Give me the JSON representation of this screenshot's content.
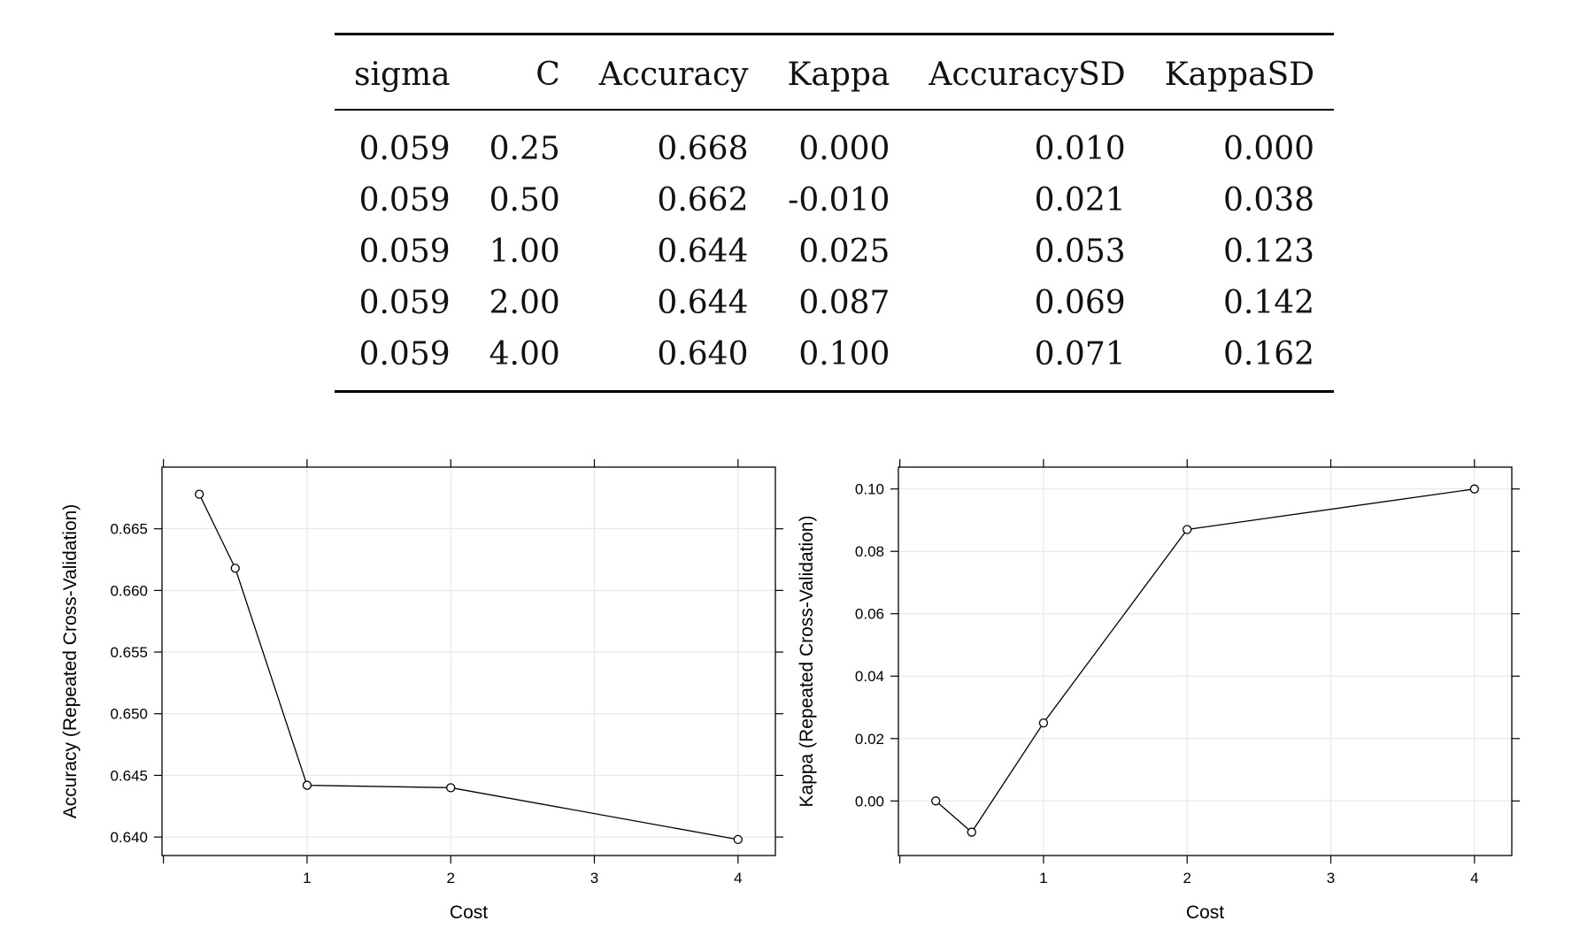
{
  "table": {
    "columns": [
      "sigma",
      "C",
      "Accuracy",
      "Kappa",
      "AccuracySD",
      "KappaSD"
    ],
    "rows": [
      [
        "0.059",
        "0.25",
        "0.668",
        "0.000",
        "0.010",
        "0.000"
      ],
      [
        "0.059",
        "0.50",
        "0.662",
        "-0.010",
        "0.021",
        "0.038"
      ],
      [
        "0.059",
        "1.00",
        "0.644",
        "0.025",
        "0.053",
        "0.123"
      ],
      [
        "0.059",
        "2.00",
        "0.644",
        "0.087",
        "0.069",
        "0.142"
      ],
      [
        "0.059",
        "4.00",
        "0.640",
        "0.100",
        "0.071",
        "0.162"
      ]
    ]
  },
  "chart_data": [
    {
      "type": "line",
      "title": "",
      "xlabel": "Cost",
      "ylabel": "Accuracy (Repeated Cross-Validation)",
      "x": [
        0.25,
        0.5,
        1,
        2,
        4
      ],
      "y": [
        0.6678,
        0.6618,
        0.6442,
        0.644,
        0.6398
      ],
      "xlim": [
        -0.01,
        4.26
      ],
      "ylim": [
        0.6385,
        0.67
      ],
      "xticks": [
        1,
        2,
        3,
        4
      ],
      "xtick_labels": [
        "1",
        "2",
        "3",
        "4"
      ],
      "yticks": [
        0.64,
        0.645,
        0.65,
        0.655,
        0.66,
        0.665
      ],
      "ytick_labels": [
        "0.640",
        "0.645",
        "0.650",
        "0.655",
        "0.660",
        "0.665"
      ],
      "grid": true
    },
    {
      "type": "line",
      "title": "",
      "xlabel": "Cost",
      "ylabel": "Kappa (Repeated Cross-Validation)",
      "x": [
        0.25,
        0.5,
        1,
        2,
        4
      ],
      "y": [
        0.0,
        -0.01,
        0.025,
        0.087,
        0.1
      ],
      "xlim": [
        -0.01,
        4.26
      ],
      "ylim": [
        -0.0175,
        0.107
      ],
      "xticks": [
        1,
        2,
        3,
        4
      ],
      "xtick_labels": [
        "1",
        "2",
        "3",
        "4"
      ],
      "yticks": [
        0.0,
        0.02,
        0.04,
        0.06,
        0.08,
        0.1
      ],
      "ytick_labels": [
        "0.00",
        "0.02",
        "0.04",
        "0.06",
        "0.08",
        "0.10"
      ],
      "grid": true
    }
  ]
}
